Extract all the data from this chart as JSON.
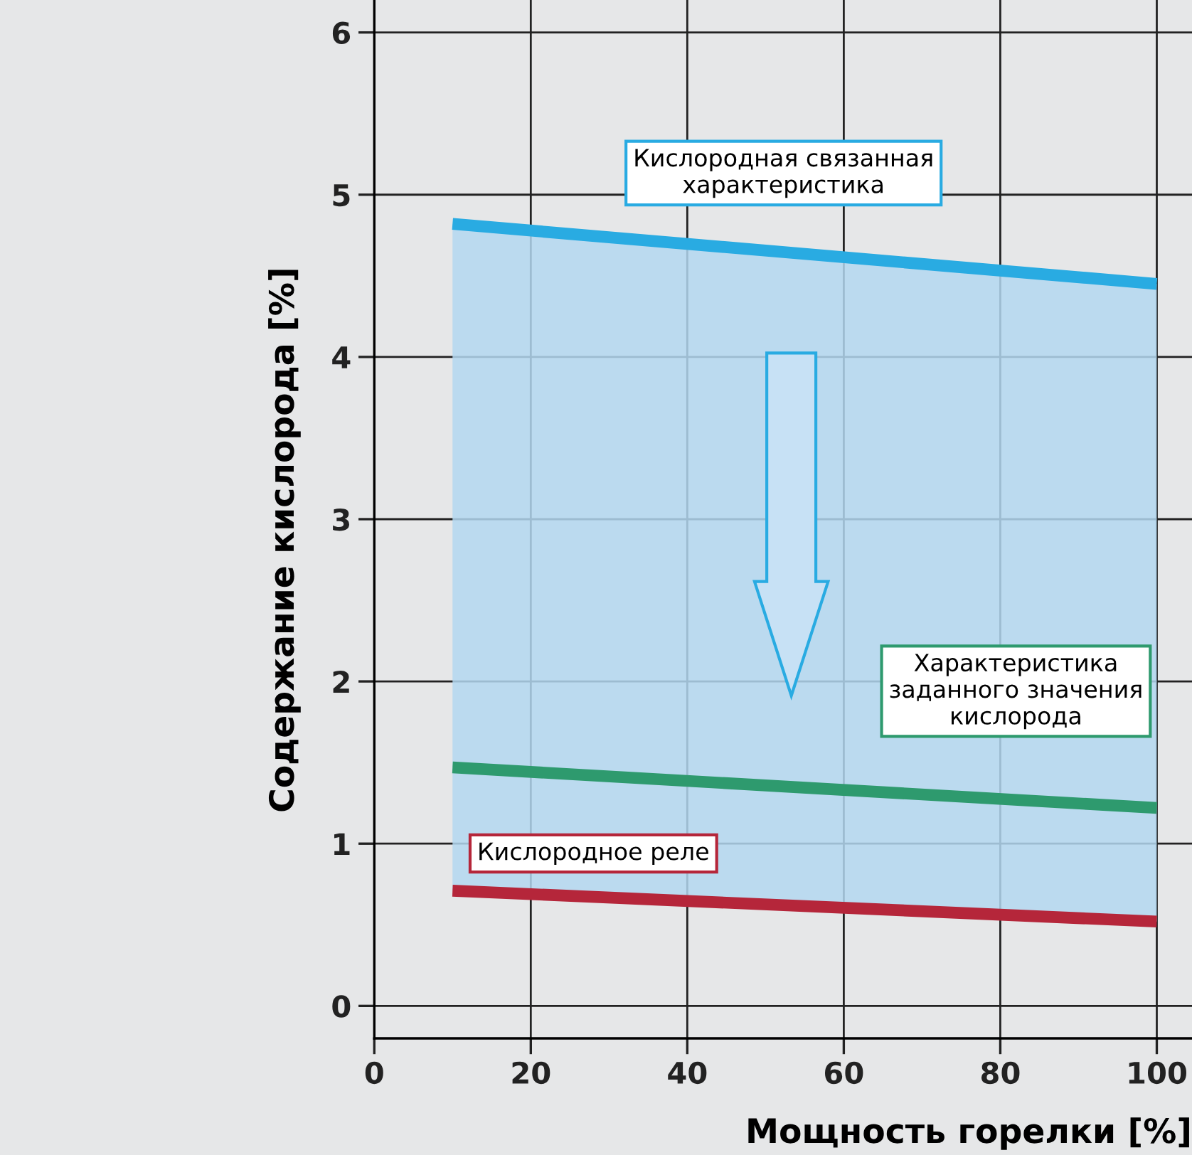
{
  "chart_data": {
    "type": "line",
    "xlabel": "Мощность горелки [%]",
    "ylabel": "Содержание кислорода [%]",
    "x": [
      10,
      100
    ],
    "series": [
      {
        "name": "Кислородная связанная\nхарактеристика",
        "color": "#29abe2",
        "values": [
          4.82,
          4.45
        ],
        "lower": [
          0.71,
          0.52
        ],
        "upper": [
          4.82,
          4.45
        ]
      },
      {
        "name": "Характеристика\nзаданного значения\nкислорода",
        "color": "#2e9a6e",
        "values": [
          1.47,
          1.22
        ]
      },
      {
        "name": "Кислородное реле",
        "color": "#b5263a",
        "values": [
          0.71,
          0.52
        ]
      }
    ],
    "xlim": [
      0,
      104.5
    ],
    "ylim": [
      -0.2,
      6.2
    ],
    "xticks": [
      0,
      20,
      40,
      60,
      80,
      100
    ],
    "yticks": [
      0,
      1,
      2,
      3,
      4,
      5,
      6
    ],
    "grid": true,
    "legend": false,
    "marker": "none",
    "line_style": "solid"
  }
}
